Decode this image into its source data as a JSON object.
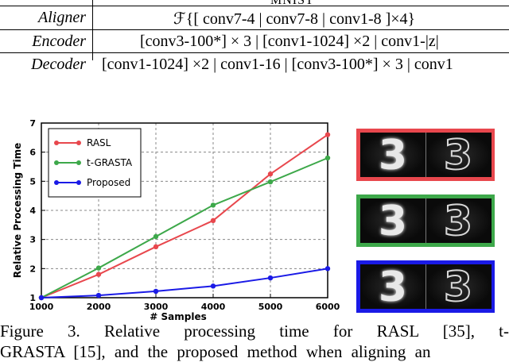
{
  "table": {
    "header_partial": "MNIST",
    "rows": [
      {
        "name": "Aligner",
        "layers": "ℱ{[ conv7-4 | conv7-8 | conv1-8 ]×4}"
      },
      {
        "name": "Encoder",
        "layers": "[conv3-100*] × 3 | [conv1-1024] ×2 | conv1-|z|"
      },
      {
        "name": "Decoder",
        "layers": "[conv1-1024] ×2 | conv1-16 | [conv3-100*] × 3 | conv1"
      }
    ]
  },
  "chart_data": {
    "type": "line",
    "xlabel": "# Samples",
    "ylabel": "Relative Processing Time",
    "x": [
      1000,
      2000,
      3000,
      4000,
      5000,
      6000
    ],
    "xlim": [
      1000,
      6000
    ],
    "ylim": [
      1,
      7
    ],
    "xticks": [
      "1000",
      "2000",
      "3000",
      "4000",
      "5000",
      "6000"
    ],
    "yticks": [
      "1",
      "2",
      "3",
      "4",
      "5",
      "6",
      "7"
    ],
    "grid": true,
    "legend": "top-left",
    "series": [
      {
        "name": "RASL",
        "color": "#e8474d",
        "values": [
          1.0,
          1.8,
          2.75,
          3.65,
          5.25,
          6.6
        ]
      },
      {
        "name": "t-GRASTA",
        "color": "#3da84a",
        "values": [
          1.0,
          2.02,
          3.1,
          4.18,
          4.98,
          5.8
        ]
      },
      {
        "name": "Proposed",
        "color": "#1a1ae6",
        "values": [
          1.0,
          1.08,
          1.22,
          1.4,
          1.68,
          2.0
        ]
      }
    ]
  },
  "thumbnails": [
    {
      "label": "3",
      "border_color": "#e8474d"
    },
    {
      "label": "3",
      "border_color": "#3da84a"
    },
    {
      "label": "3",
      "border_color": "#1a1ae6"
    }
  ],
  "caption": {
    "line1": "Figure 3.  Relative  processing  time  for  RASL  [35],  t-",
    "line2": "GRASTA [15], and the proposed method when aligning an"
  }
}
